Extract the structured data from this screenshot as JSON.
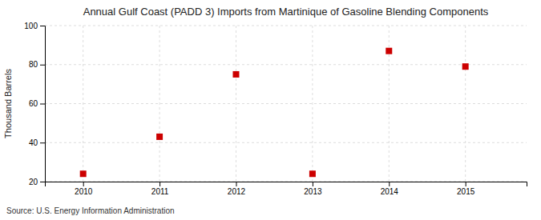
{
  "chart_data": {
    "type": "scatter",
    "title": "Annual Gulf Coast (PADD 3) Imports from Martinique of Gasoline Blending Components",
    "ylabel": "Thousand Barrels",
    "source": "Source: U.S. Energy Information Administration",
    "x": [
      2010,
      2011,
      2012,
      2013,
      2014,
      2015
    ],
    "values": [
      24,
      43,
      75,
      24,
      87,
      79
    ],
    "xlim": [
      2009.5,
      2015.8
    ],
    "ylim": [
      20,
      100
    ],
    "xticks": [
      2010,
      2011,
      2012,
      2013,
      2014,
      2015
    ],
    "yticks": [
      20,
      40,
      60,
      80,
      100
    ],
    "color": "#cc0000",
    "marker": "square",
    "grid": true
  }
}
